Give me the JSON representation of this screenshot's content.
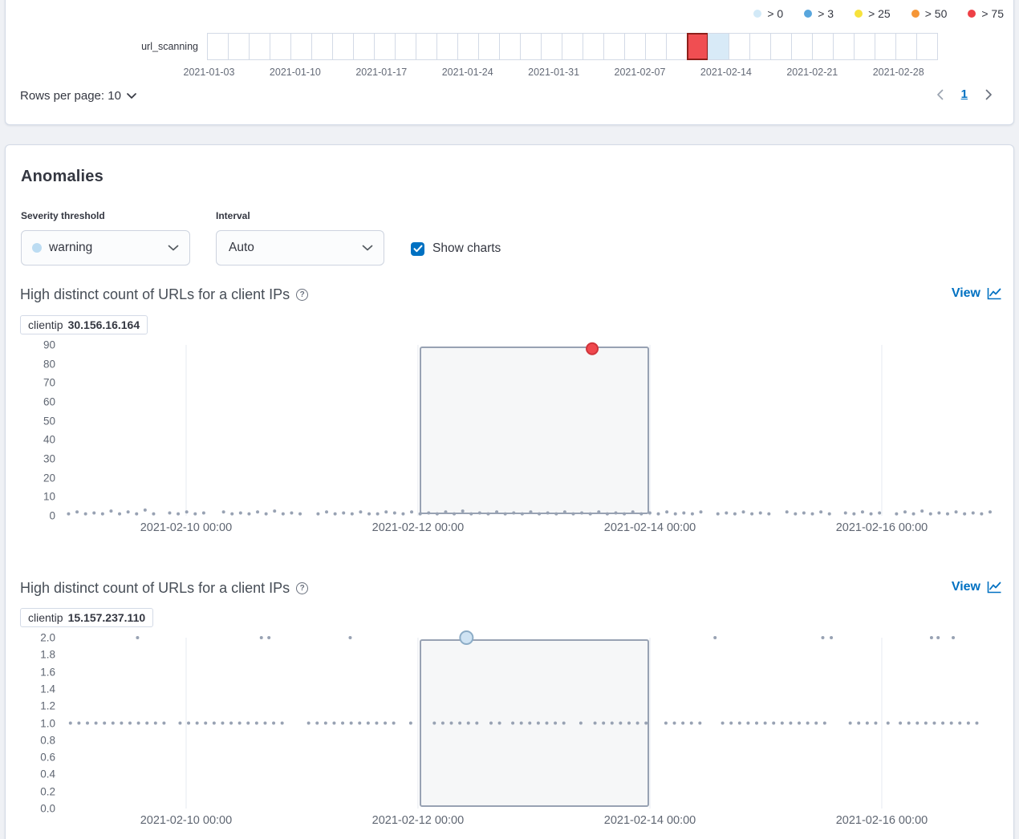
{
  "swimlane_panel": {
    "legend": [
      {
        "label": "> 0",
        "color": "#d2e9f7"
      },
      {
        "label": "> 3",
        "color": "#58a6dd"
      },
      {
        "label": "> 25",
        "color": "#f7e23b"
      },
      {
        "label": "> 50",
        "color": "#f59637"
      },
      {
        "label": "> 75",
        "color": "#ee4046"
      }
    ],
    "row_label": "url_scanning",
    "cells": {
      "count": 35,
      "highlights": [
        {
          "index": 23,
          "fill": "#f04e52",
          "border": "#8e1f1b",
          "severity": "critical"
        },
        {
          "index": 24,
          "fill": "#d8eaf7",
          "border": "#d3dae6",
          "severity": "low"
        }
      ]
    },
    "axis_labels": [
      "2021-01-03",
      "2021-01-10",
      "2021-01-17",
      "2021-01-24",
      "2021-01-31",
      "2021-02-07",
      "2021-02-14",
      "2021-02-21",
      "2021-02-28"
    ],
    "rows_per_page_label": "Rows per page: 10",
    "pagination": {
      "current_page": "1"
    }
  },
  "anomalies": {
    "title": "Anomalies",
    "severity_label": "Severity threshold",
    "severity_value": "warning",
    "severity_dot_color": "#bcdcf2",
    "interval_label": "Interval",
    "interval_value": "Auto",
    "show_charts_label": "Show charts",
    "view_label": "View"
  },
  "chart_data": [
    {
      "type": "scatter",
      "title": "High distinct count of URLs for a client IPs",
      "badge_field": "clientip",
      "badge_value": "30.156.16.164",
      "ylim": [
        0,
        90
      ],
      "ytick_labels": [
        "90",
        "80",
        "70",
        "60",
        "50",
        "40",
        "30",
        "20",
        "10",
        "0"
      ],
      "xticks": [
        {
          "label": "2021-02-10 00:00",
          "f": 0.1324
        },
        {
          "label": "2021-02-12 00:00",
          "f": 0.3777
        },
        {
          "label": "2021-02-14 00:00",
          "f": 0.6231
        },
        {
          "label": "2021-02-16 00:00",
          "f": 0.8684
        }
      ],
      "selection": {
        "f0": 0.3803,
        "f1": 0.6214
      },
      "anomalies": [
        {
          "f": 0.562,
          "y": 88,
          "fill": "#f0484e",
          "stroke": "#cf353b",
          "r": 7
        }
      ],
      "points": [
        [
          0.008,
          1
        ],
        [
          0.017,
          2
        ],
        [
          0.026,
          1
        ],
        [
          0.035,
          1.5
        ],
        [
          0.044,
          1
        ],
        [
          0.053,
          2.5
        ],
        [
          0.062,
          1
        ],
        [
          0.071,
          2
        ],
        [
          0.08,
          1
        ],
        [
          0.089,
          3
        ],
        [
          0.098,
          1
        ],
        [
          0.115,
          1.5
        ],
        [
          0.124,
          1
        ],
        [
          0.133,
          2
        ],
        [
          0.142,
          1
        ],
        [
          0.151,
          1.5
        ],
        [
          0.172,
          2
        ],
        [
          0.181,
          1
        ],
        [
          0.19,
          1.5
        ],
        [
          0.199,
          1
        ],
        [
          0.208,
          2
        ],
        [
          0.217,
          1
        ],
        [
          0.226,
          2.5
        ],
        [
          0.235,
          1
        ],
        [
          0.244,
          1.5
        ],
        [
          0.253,
          1
        ],
        [
          0.272,
          1
        ],
        [
          0.281,
          2
        ],
        [
          0.29,
          1
        ],
        [
          0.299,
          1.5
        ],
        [
          0.308,
          1
        ],
        [
          0.317,
          2
        ],
        [
          0.326,
          1
        ],
        [
          0.335,
          1
        ],
        [
          0.344,
          2
        ],
        [
          0.353,
          1.5
        ],
        [
          0.362,
          1
        ],
        [
          0.371,
          2
        ],
        [
          0.38,
          1
        ],
        [
          0.389,
          1.5
        ],
        [
          0.398,
          1
        ],
        [
          0.407,
          2
        ],
        [
          0.416,
          1
        ],
        [
          0.425,
          2.5
        ],
        [
          0.434,
          1
        ],
        [
          0.443,
          1.5
        ],
        [
          0.452,
          1
        ],
        [
          0.461,
          2
        ],
        [
          0.47,
          1
        ],
        [
          0.479,
          1.5
        ],
        [
          0.488,
          1
        ],
        [
          0.497,
          2
        ],
        [
          0.506,
          1
        ],
        [
          0.515,
          1.5
        ],
        [
          0.524,
          1
        ],
        [
          0.533,
          2
        ],
        [
          0.542,
          1
        ],
        [
          0.551,
          1.5
        ],
        [
          0.56,
          1
        ],
        [
          0.569,
          2
        ],
        [
          0.578,
          1
        ],
        [
          0.587,
          1.5
        ],
        [
          0.596,
          1
        ],
        [
          0.605,
          2
        ],
        [
          0.614,
          1
        ],
        [
          0.623,
          1.5
        ],
        [
          0.632,
          1
        ],
        [
          0.641,
          2
        ],
        [
          0.65,
          1
        ],
        [
          0.659,
          1.5
        ],
        [
          0.668,
          1
        ],
        [
          0.677,
          2
        ],
        [
          0.695,
          1
        ],
        [
          0.704,
          1.5
        ],
        [
          0.713,
          1
        ],
        [
          0.722,
          2
        ],
        [
          0.731,
          1
        ],
        [
          0.74,
          1.5
        ],
        [
          0.749,
          1
        ],
        [
          0.768,
          2
        ],
        [
          0.777,
          1
        ],
        [
          0.786,
          1.5
        ],
        [
          0.795,
          1
        ],
        [
          0.804,
          2
        ],
        [
          0.813,
          1
        ],
        [
          0.83,
          1.5
        ],
        [
          0.839,
          1
        ],
        [
          0.848,
          2
        ],
        [
          0.857,
          1
        ],
        [
          0.866,
          1.5
        ],
        [
          0.884,
          1
        ],
        [
          0.893,
          2
        ],
        [
          0.902,
          1
        ],
        [
          0.911,
          2.5
        ],
        [
          0.92,
          1
        ],
        [
          0.929,
          1.5
        ],
        [
          0.938,
          1
        ],
        [
          0.947,
          2
        ],
        [
          0.956,
          1
        ],
        [
          0.965,
          1.5
        ],
        [
          0.974,
          1
        ],
        [
          0.983,
          2
        ]
      ]
    },
    {
      "type": "scatter",
      "title": "High distinct count of URLs for a client IPs",
      "badge_field": "clientip",
      "badge_value": "15.157.237.110",
      "ylim": [
        0,
        2
      ],
      "ytick_labels": [
        "2.0",
        "1.8",
        "1.6",
        "1.4",
        "1.2",
        "1.0",
        "0.8",
        "0.6",
        "0.4",
        "0.2",
        "0.0"
      ],
      "xticks": [
        {
          "label": "2021-02-10 00:00",
          "f": 0.1324
        },
        {
          "label": "2021-02-12 00:00",
          "f": 0.3777
        },
        {
          "label": "2021-02-14 00:00",
          "f": 0.6231
        },
        {
          "label": "2021-02-16 00:00",
          "f": 0.8684
        }
      ],
      "selection": {
        "f0": 0.3803,
        "f1": 0.6214
      },
      "anomalies": [
        {
          "f": 0.429,
          "y": 2,
          "fill": "#cfe3f3",
          "stroke": "#8cacc6",
          "r": 8
        }
      ],
      "points": [
        [
          0.081,
          2
        ],
        [
          0.212,
          2
        ],
        [
          0.22,
          2
        ],
        [
          0.306,
          2
        ],
        [
          0.692,
          2
        ],
        [
          0.806,
          2
        ],
        [
          0.815,
          2
        ],
        [
          0.921,
          2
        ],
        [
          0.928,
          2
        ],
        [
          0.944,
          2
        ],
        [
          0.01,
          1
        ],
        [
          0.019,
          1
        ],
        [
          0.028,
          1
        ],
        [
          0.037,
          1
        ],
        [
          0.046,
          1
        ],
        [
          0.055,
          1
        ],
        [
          0.064,
          1
        ],
        [
          0.073,
          1
        ],
        [
          0.082,
          1
        ],
        [
          0.091,
          1
        ],
        [
          0.1,
          1
        ],
        [
          0.109,
          1
        ],
        [
          0.126,
          1
        ],
        [
          0.135,
          1
        ],
        [
          0.144,
          1
        ],
        [
          0.153,
          1
        ],
        [
          0.162,
          1
        ],
        [
          0.171,
          1
        ],
        [
          0.18,
          1
        ],
        [
          0.189,
          1
        ],
        [
          0.198,
          1
        ],
        [
          0.207,
          1
        ],
        [
          0.216,
          1
        ],
        [
          0.225,
          1
        ],
        [
          0.234,
          1
        ],
        [
          0.262,
          1
        ],
        [
          0.271,
          1
        ],
        [
          0.28,
          1
        ],
        [
          0.289,
          1
        ],
        [
          0.298,
          1
        ],
        [
          0.307,
          1
        ],
        [
          0.316,
          1
        ],
        [
          0.325,
          1
        ],
        [
          0.334,
          1
        ],
        [
          0.343,
          1
        ],
        [
          0.352,
          1
        ],
        [
          0.37,
          1
        ],
        [
          0.395,
          1
        ],
        [
          0.404,
          1
        ],
        [
          0.413,
          1
        ],
        [
          0.422,
          1
        ],
        [
          0.431,
          1
        ],
        [
          0.44,
          1
        ],
        [
          0.455,
          1
        ],
        [
          0.464,
          1
        ],
        [
          0.478,
          1
        ],
        [
          0.487,
          1
        ],
        [
          0.496,
          1
        ],
        [
          0.505,
          1
        ],
        [
          0.514,
          1
        ],
        [
          0.523,
          1
        ],
        [
          0.532,
          1
        ],
        [
          0.55,
          1
        ],
        [
          0.565,
          1
        ],
        [
          0.574,
          1
        ],
        [
          0.583,
          1
        ],
        [
          0.592,
          1
        ],
        [
          0.601,
          1
        ],
        [
          0.61,
          1
        ],
        [
          0.619,
          1
        ],
        [
          0.64,
          1
        ],
        [
          0.649,
          1
        ],
        [
          0.658,
          1
        ],
        [
          0.667,
          1
        ],
        [
          0.676,
          1
        ],
        [
          0.7,
          1
        ],
        [
          0.709,
          1
        ],
        [
          0.718,
          1
        ],
        [
          0.727,
          1
        ],
        [
          0.736,
          1
        ],
        [
          0.745,
          1
        ],
        [
          0.754,
          1
        ],
        [
          0.763,
          1
        ],
        [
          0.772,
          1
        ],
        [
          0.781,
          1
        ],
        [
          0.79,
          1
        ],
        [
          0.799,
          1
        ],
        [
          0.808,
          1
        ],
        [
          0.835,
          1
        ],
        [
          0.844,
          1
        ],
        [
          0.853,
          1
        ],
        [
          0.862,
          1
        ],
        [
          0.875,
          1
        ],
        [
          0.888,
          1
        ],
        [
          0.897,
          1
        ],
        [
          0.906,
          1
        ],
        [
          0.915,
          1
        ],
        [
          0.924,
          1
        ],
        [
          0.933,
          1
        ],
        [
          0.942,
          1
        ],
        [
          0.951,
          1
        ],
        [
          0.96,
          1
        ],
        [
          0.969,
          1
        ]
      ]
    }
  ]
}
